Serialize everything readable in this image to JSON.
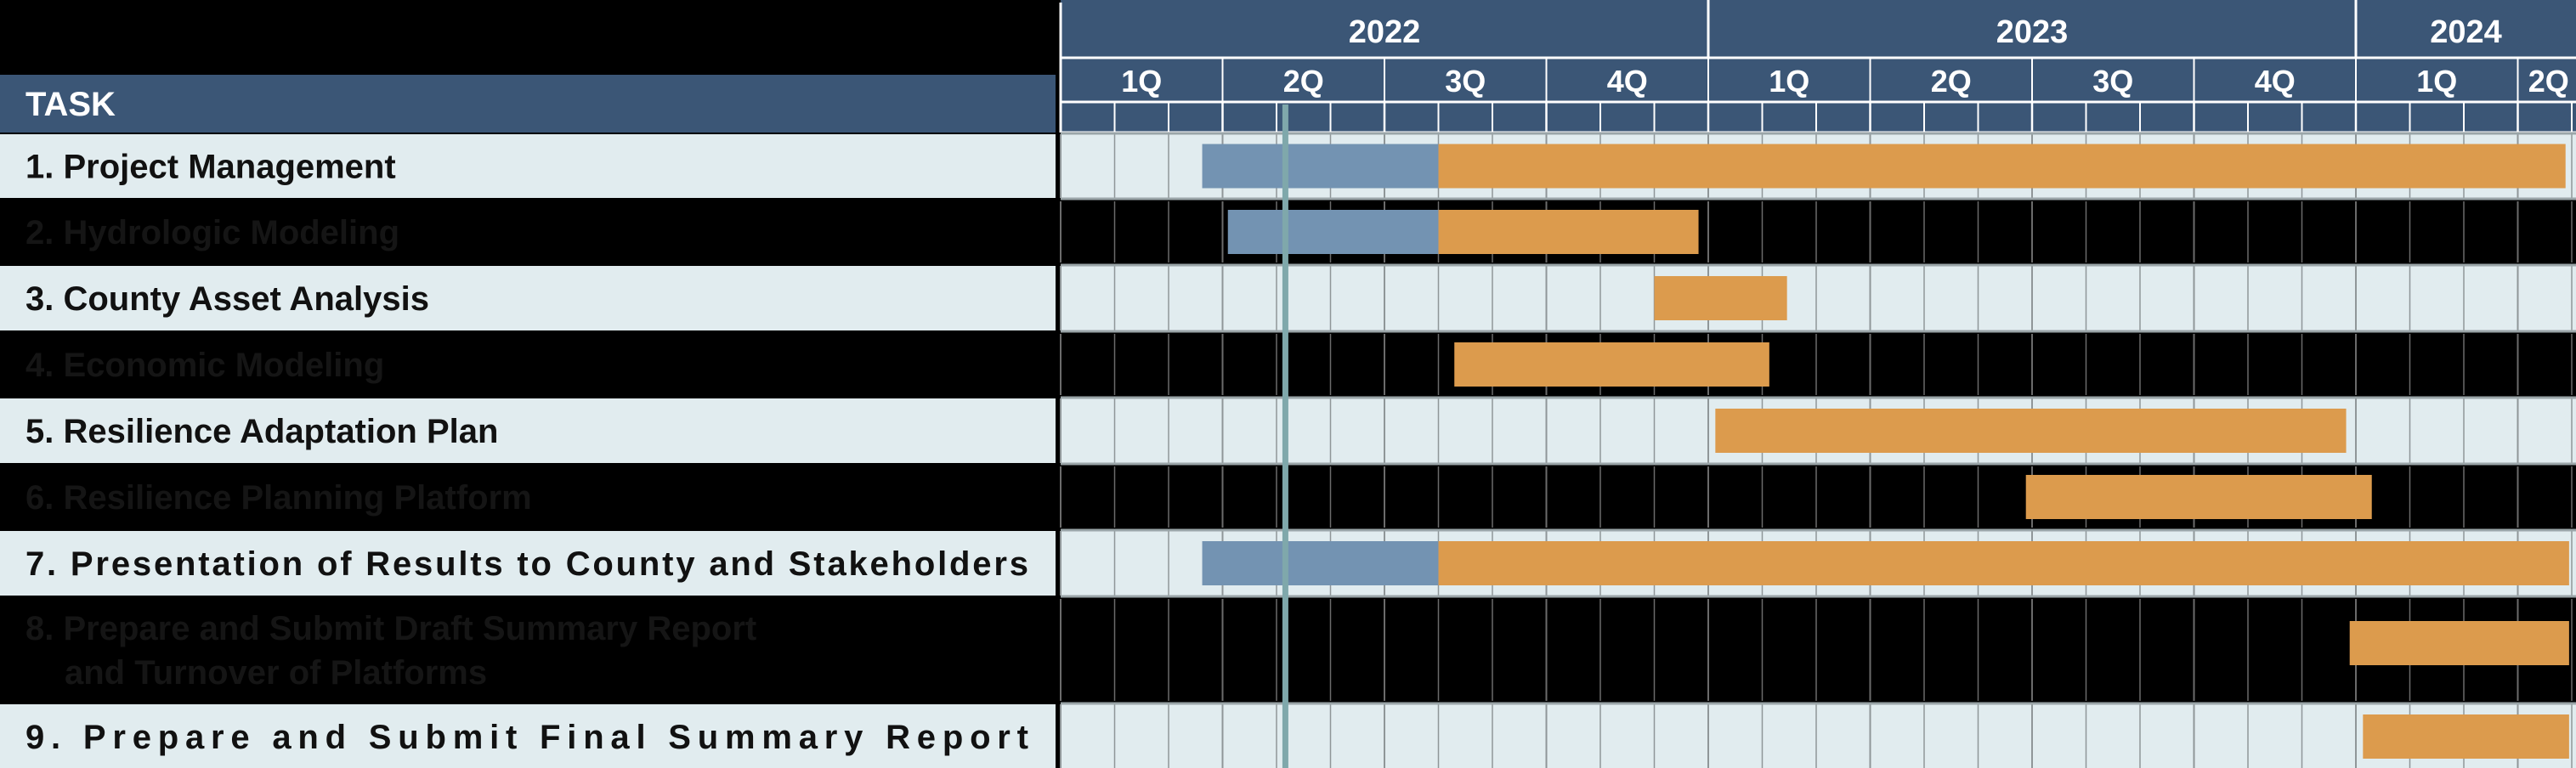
{
  "chart_data": {
    "type": "gantt",
    "header": {
      "task_column_label": "TASK",
      "years": [
        "2022",
        "2023",
        "2024"
      ],
      "quarters": [
        "1Q",
        "2Q",
        "3Q",
        "4Q",
        "1Q",
        "2Q",
        "3Q",
        "4Q",
        "1Q",
        "2Q"
      ]
    },
    "time_axis": {
      "start": "2022-01",
      "end": "2024-06",
      "unit": "month"
    },
    "current_date_line": "2022-05-06",
    "tasks": [
      {
        "label": "1. Project Management",
        "segments": [
          {
            "start": "2022-03-20",
            "end": "2022-08-01",
            "status": "completed"
          },
          {
            "start": "2022-08-01",
            "end": "2024-04-28",
            "status": "planned"
          }
        ]
      },
      {
        "label": "2. Hydrologic Modeling",
        "segments": [
          {
            "start": "2022-04-04",
            "end": "2022-08-01",
            "status": "completed"
          },
          {
            "start": "2022-08-01",
            "end": "2022-12-26",
            "status": "planned"
          }
        ]
      },
      {
        "label": "3. County Asset Analysis",
        "segments": [
          {
            "start": "2022-12-01",
            "end": "2023-02-15",
            "status": "planned"
          }
        ]
      },
      {
        "label": "4. Economic Modeling",
        "segments": [
          {
            "start": "2022-08-10",
            "end": "2023-02-05",
            "status": "planned"
          }
        ]
      },
      {
        "label": "5. Resilience Adaptation Plan",
        "segments": [
          {
            "start": "2023-01-05",
            "end": "2023-12-26",
            "status": "planned"
          }
        ]
      },
      {
        "label": "6. Resilience Planning Platform",
        "segments": [
          {
            "start": "2023-06-28",
            "end": "2024-01-10",
            "status": "planned"
          }
        ]
      },
      {
        "label": "7. Presentation of Results to County and Stakeholders",
        "segments": [
          {
            "start": "2022-03-20",
            "end": "2022-08-01",
            "status": "completed"
          },
          {
            "start": "2022-08-01",
            "end": "2024-04-30",
            "status": "planned"
          }
        ]
      },
      {
        "label_lines": [
          "8. Prepare and Submit Draft Summary Report",
          "and Turnover of Platforms"
        ],
        "segments": [
          {
            "start": "2023-12-28",
            "end": "2024-04-30",
            "status": "planned"
          }
        ]
      },
      {
        "label": "9. Prepare and Submit Final Summary Report",
        "segments": [
          {
            "start": "2024-01-05",
            "end": "2024-04-30",
            "status": "planned"
          }
        ]
      }
    ],
    "colors": {
      "header_bg": "#3b5676",
      "header_text": "#ffffff",
      "row_light": "#e1ecef",
      "row_dark": "#000000",
      "label_text_light": "#111111",
      "label_text_dark": "#151515",
      "completed": "#7393b2",
      "planned": "#dc9b4d",
      "current_line": "#7fa8ab",
      "grid_light": "#8f9698",
      "grid_dark": "#6b6b6b",
      "separator": "#9aa5a8"
    }
  }
}
